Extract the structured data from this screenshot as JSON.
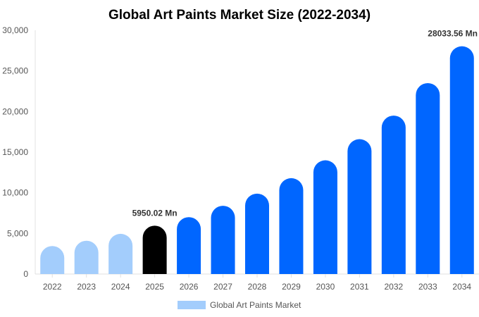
{
  "chart_data": {
    "type": "bar",
    "title": "Global Art Paints Market Size (2022-2034)",
    "xlabel": "",
    "ylabel": "",
    "categories": [
      "2022",
      "2023",
      "2024",
      "2025",
      "2026",
      "2027",
      "2028",
      "2029",
      "2030",
      "2031",
      "2032",
      "2033",
      "2034"
    ],
    "series": [
      {
        "name": "Global Art Paints Market",
        "values": [
          3450,
          4100,
          4950,
          5950.02,
          7000,
          8400,
          9900,
          11800,
          14000,
          16600,
          19500,
          23500,
          28033.56
        ]
      }
    ],
    "ylim": [
      0,
      30000
    ],
    "yticks": [
      "0",
      "5,000",
      "10,000",
      "15,000",
      "20,000",
      "25,000",
      "30,000"
    ],
    "annotations": [
      {
        "category": "2025",
        "text": "5950.02 Mn"
      },
      {
        "category": "2034",
        "text": "28033.56 Mn"
      }
    ],
    "grid": false,
    "legend_position": "bottom",
    "colors": {
      "historical": "#a3cdfc",
      "current": "#000000",
      "forecast": "#0066ff",
      "legend_swatch": "#a3cdfc"
    },
    "bar_groups": [
      "historical",
      "historical",
      "historical",
      "current",
      "forecast",
      "forecast",
      "forecast",
      "forecast",
      "forecast",
      "forecast",
      "forecast",
      "forecast",
      "forecast"
    ]
  }
}
